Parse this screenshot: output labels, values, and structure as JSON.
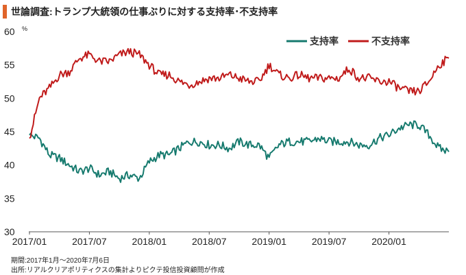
{
  "header": {
    "title": "世論調査:トランプ大統領の仕事ぶりに対する支持率･不支持率",
    "accent_color": "#e0642a"
  },
  "notes": {
    "period": "期間:2017年1月～2020年7月6日",
    "source": "出所:リアルクリアポリティクスの集計よりピクテ投信投資顧問が作成"
  },
  "chart_data": {
    "type": "line",
    "title": "世論調査:トランプ大統領の仕事ぶりに対する支持率･不支持率",
    "ylabel": "",
    "y_unit": "%",
    "ylim": [
      30,
      60
    ],
    "y_ticks": [
      30,
      35,
      40,
      45,
      50,
      55,
      60
    ],
    "x_ticks": [
      "2017/01",
      "2017/07",
      "2018/01",
      "2018/07",
      "2019/01",
      "2019/07",
      "2020/01"
    ],
    "xlim": [
      "2017-01",
      "2020-07"
    ],
    "grid": false,
    "legend_position": "top-right",
    "series": [
      {
        "name": "支持率",
        "color": "#167a6e",
        "x": [
          "2017-01",
          "2017-02",
          "2017-03",
          "2017-04",
          "2017-05",
          "2017-06",
          "2017-07",
          "2017-08",
          "2017-09",
          "2017-10",
          "2017-11",
          "2017-12",
          "2018-01",
          "2018-02",
          "2018-03",
          "2018-04",
          "2018-05",
          "2018-06",
          "2018-07",
          "2018-08",
          "2018-09",
          "2018-10",
          "2018-11",
          "2018-12",
          "2019-01",
          "2019-02",
          "2019-03",
          "2019-04",
          "2019-05",
          "2019-06",
          "2019-07",
          "2019-08",
          "2019-09",
          "2019-10",
          "2019-11",
          "2019-12",
          "2020-01",
          "2020-02",
          "2020-03",
          "2020-04",
          "2020-05",
          "2020-06",
          "2020-07"
        ],
        "values": [
          44.5,
          44.0,
          41.5,
          41.0,
          40.0,
          39.0,
          39.5,
          38.5,
          39.0,
          38.0,
          38.5,
          38.0,
          40.5,
          41.5,
          41.5,
          42.5,
          43.5,
          43.5,
          43.0,
          43.0,
          42.5,
          43.5,
          43.0,
          43.0,
          41.0,
          43.0,
          43.5,
          43.5,
          43.5,
          44.0,
          43.5,
          43.5,
          43.5,
          43.0,
          43.0,
          44.0,
          44.5,
          45.5,
          46.0,
          46.0,
          44.5,
          42.5,
          42.0
        ]
      },
      {
        "name": "不支持率",
        "color": "#c01b1b",
        "x": [
          "2017-01",
          "2017-02",
          "2017-03",
          "2017-04",
          "2017-05",
          "2017-06",
          "2017-07",
          "2017-08",
          "2017-09",
          "2017-10",
          "2017-11",
          "2017-12",
          "2018-01",
          "2018-02",
          "2018-03",
          "2018-04",
          "2018-05",
          "2018-06",
          "2018-07",
          "2018-08",
          "2018-09",
          "2018-10",
          "2018-11",
          "2018-12",
          "2019-01",
          "2019-02",
          "2019-03",
          "2019-04",
          "2019-05",
          "2019-06",
          "2019-07",
          "2019-08",
          "2019-09",
          "2019-10",
          "2019-11",
          "2019-12",
          "2020-01",
          "2020-02",
          "2020-03",
          "2020-04",
          "2020-05",
          "2020-06",
          "2020-07"
        ],
        "values": [
          44.0,
          50.0,
          51.5,
          53.5,
          54.0,
          56.0,
          56.5,
          55.5,
          55.5,
          56.5,
          57.0,
          56.5,
          55.0,
          53.5,
          53.5,
          52.5,
          52.0,
          52.5,
          53.0,
          53.0,
          53.5,
          53.0,
          52.5,
          52.5,
          55.0,
          53.5,
          53.0,
          53.5,
          53.0,
          53.0,
          53.0,
          53.0,
          54.5,
          53.0,
          53.0,
          52.5,
          52.5,
          51.5,
          51.0,
          51.0,
          52.5,
          55.0,
          56.0
        ]
      }
    ]
  }
}
